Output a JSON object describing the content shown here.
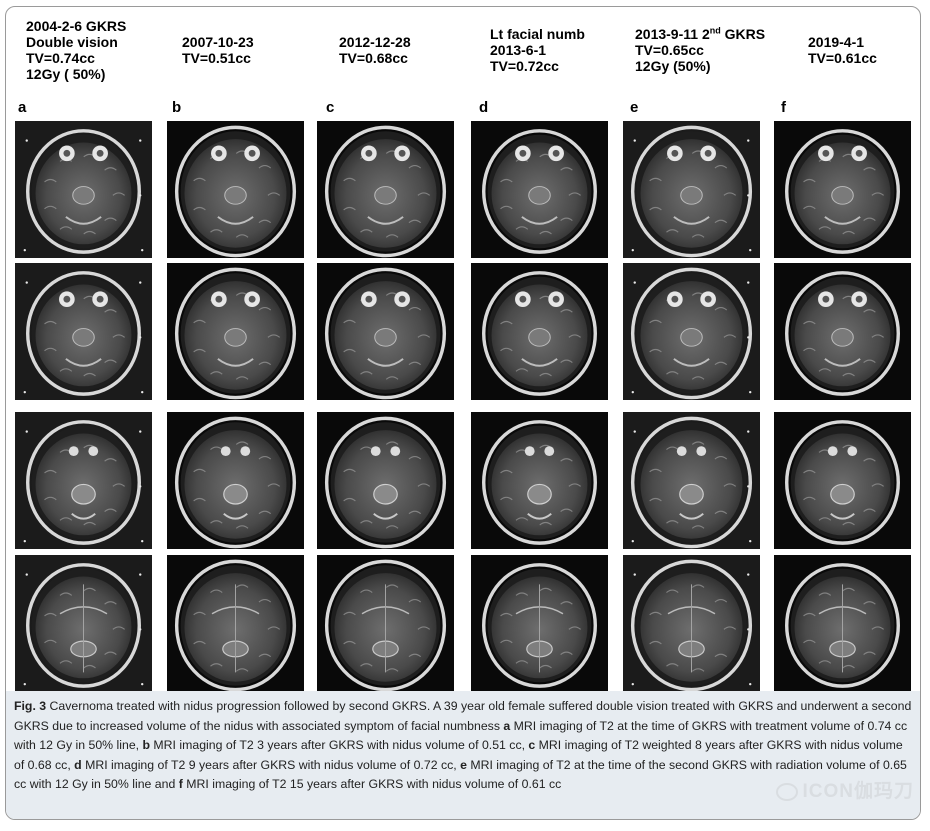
{
  "columns": [
    {
      "panel": "a",
      "lines": [
        "2004-2-6 GKRS",
        "Double vision",
        "TV=0.74cc",
        "12Gy  ( 50%)"
      ]
    },
    {
      "panel": "b",
      "lines": [
        "2007-10-23",
        "TV=0.51cc"
      ]
    },
    {
      "panel": "c",
      "lines": [
        "2012-12-28",
        "TV=0.68cc"
      ]
    },
    {
      "panel": "d",
      "lines": [
        "Lt facial numb",
        "2013-6-1",
        "TV=0.72cc"
      ]
    },
    {
      "panel": "e",
      "lines": [
        "2013-9-11 2",
        "TV=0.65cc",
        " 12Gy (50%)"
      ],
      "sup": "nd",
      "line1_suffix": " GKRS"
    },
    {
      "panel": "f",
      "lines": [
        "2019-4-1",
        "TV=0.61cc"
      ]
    }
  ],
  "caption": {
    "fig_label": "Fig. 3",
    "seg1": "  Cavernoma treated with nidus progression followed by second GKRS. A 39 year old female suffered double vision treated with GKRS and underwent a second GKRS due to increased volume of the nidus with associated symptom of facial numbness ",
    "a": "a",
    "seg2": " MRI imaging of T2 at the time of GKRS with treatment volume of 0.74 cc with 12 Gy in 50% line, ",
    "b": "b",
    "seg3": " MRI imaging of T2 3 years after GKRS with nidus volume of 0.51 cc, ",
    "c": "c",
    "seg4": " MRI imaging of T2 weighted 8 years after GKRS with nidus volume of 0.68 cc, ",
    "d": "d",
    "seg5": " MRI imaging of T2 9 years after GKRS with nidus volume of 0.72 cc, ",
    "e": "e",
    "seg6": " MRI imaging of T2 at the time of the second GKRS with radiation volume of 0.65 cc with 12 Gy in 50% line and ",
    "f": "f",
    "seg7": " MRI imaging of T2 15 years after GKRS with nidus volume of 0.61 cc"
  },
  "watermark": "ICON伽玛刀",
  "watermark_icon": "wechat-icon"
}
